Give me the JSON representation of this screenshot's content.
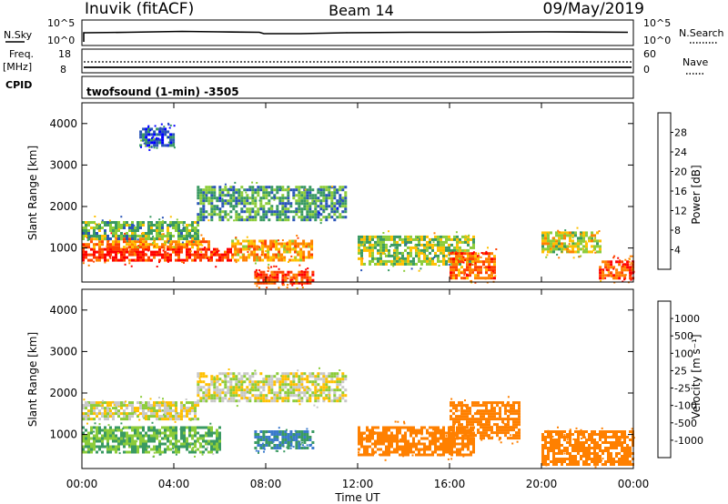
{
  "header": {
    "station": "Inuvik (fitACF)",
    "beam": "Beam 14",
    "date": "09/May/2019"
  },
  "noise_panel": {
    "left_label": "N.Sky",
    "left_ticks": [
      "10^5",
      "10^0"
    ],
    "right_ticks": [
      "10^5",
      "10^0"
    ],
    "right_label": "N.Search"
  },
  "freq_panel": {
    "left_label_1": "Freq.",
    "left_label_2": "[MHz]",
    "left_ticks": [
      "18",
      "8"
    ],
    "right_ticks": [
      "60",
      "0"
    ],
    "right_label": "Nave"
  },
  "cpid": {
    "label": "CPID",
    "program": "twofsound (1-min)  -3505"
  },
  "x_axis": {
    "title": "Time UT",
    "ticks": [
      "00:00",
      "04:00",
      "08:00",
      "12:00",
      "16:00",
      "20:00",
      "00:00"
    ]
  },
  "power_panel": {
    "ylabel": "Slant Range [km]",
    "yticks": [
      "1000",
      "2000",
      "3000",
      "4000"
    ],
    "colorbar_label": "Power [dB]",
    "colorbar_ticks": [
      "4",
      "8",
      "12",
      "16",
      "20",
      "24",
      "28"
    ],
    "colors": [
      "#0000ff",
      "#2a55b8",
      "#3a9a62",
      "#8ccc3a",
      "#ffc000",
      "#ff8000",
      "#ff4000",
      "#ff0000"
    ]
  },
  "velocity_panel": {
    "ylabel": "Slant Range [km]",
    "yticks": [
      "1000",
      "2000",
      "3000",
      "4000"
    ],
    "colorbar_label": "Velocity [m s⁻¹]",
    "colorbar_ticks": [
      "1000",
      "500",
      "100",
      "25",
      "-25",
      "-100",
      "-500",
      "-1000"
    ],
    "colors": [
      "#2a55b8",
      "#3a7acc",
      "#3a9a62",
      "#8ccc3a",
      "#c8c8c8",
      "#ffc000",
      "#ff8000",
      "#ff4000",
      "#ff0000"
    ]
  },
  "chart_data": {
    "type": "heatmap",
    "x_range_hours": [
      0,
      24
    ],
    "y_range_km": [
      180,
      4500
    ],
    "power_regions_db": [
      {
        "t": [
          0,
          6.5
        ],
        "r": [
          700,
          1000
        ],
        "value": 28
      },
      {
        "t": [
          0,
          5.5
        ],
        "r": [
          1000,
          1250
        ],
        "value": 22
      },
      {
        "t": [
          0,
          5
        ],
        "r": [
          1250,
          1650
        ],
        "value": 12
      },
      {
        "t": [
          2.5,
          4
        ],
        "r": [
          3500,
          3900
        ],
        "value": 6
      },
      {
        "t": [
          5,
          11.5
        ],
        "r": [
          1700,
          2500
        ],
        "value": 10
      },
      {
        "t": [
          6.5,
          10
        ],
        "r": [
          700,
          1200
        ],
        "value": 20
      },
      {
        "t": [
          7.5,
          10
        ],
        "r": [
          180,
          450
        ],
        "value": 26
      },
      {
        "t": [
          12,
          17
        ],
        "r": [
          600,
          1300
        ],
        "value": 14
      },
      {
        "t": [
          16,
          18
        ],
        "r": [
          300,
          900
        ],
        "value": 24
      },
      {
        "t": [
          20,
          22.5
        ],
        "r": [
          900,
          1400
        ],
        "value": 16
      },
      {
        "t": [
          22.5,
          24
        ],
        "r": [
          300,
          700
        ],
        "value": 26
      }
    ],
    "velocity_regions_ms": [
      {
        "t": [
          0,
          5
        ],
        "r": [
          1400,
          1800
        ],
        "value": 0
      },
      {
        "t": [
          0,
          6
        ],
        "r": [
          600,
          1200
        ],
        "value": 100
      },
      {
        "t": [
          5,
          11.5
        ],
        "r": [
          1800,
          2500
        ],
        "value": 0
      },
      {
        "t": [
          7.5,
          10
        ],
        "r": [
          700,
          1100
        ],
        "value": 500
      },
      {
        "t": [
          12,
          17
        ],
        "r": [
          500,
          1200
        ],
        "value": -300
      },
      {
        "t": [
          16,
          19
        ],
        "r": [
          900,
          1800
        ],
        "value": -200
      },
      {
        "t": [
          20,
          24
        ],
        "r": [
          300,
          1100
        ],
        "value": -400
      }
    ]
  }
}
